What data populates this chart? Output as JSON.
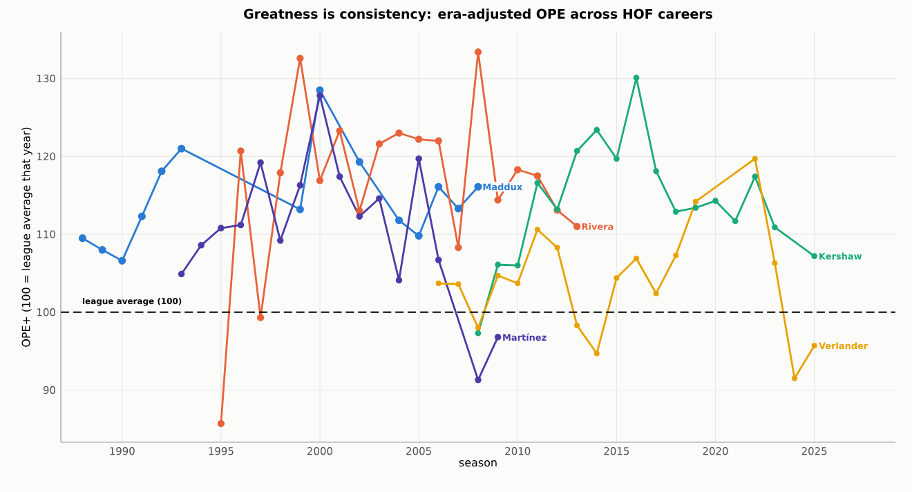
{
  "chart_data": {
    "type": "line",
    "title": "Greatness is consistency: era-adjusted OPE across HOF careers",
    "xlabel": "season",
    "ylabel": "OPE+  (100 = league average that year)",
    "xlim": [
      1986.9,
      2029.1
    ],
    "ylim": [
      83.3,
      136
    ],
    "xticks": [
      1990,
      1995,
      2000,
      2005,
      2010,
      2015,
      2020,
      2025
    ],
    "yticks": [
      90,
      100,
      110,
      120,
      130
    ],
    "grid": true,
    "legend": false,
    "marker": "circle",
    "line_style": "solid",
    "ref_lines": [
      {
        "axis": "y",
        "value": 100,
        "label": "league average (100)",
        "color": "#000000",
        "line_style": "dashed"
      }
    ],
    "series": [
      {
        "name": "Maddux",
        "color": "#2a7bd4",
        "x": [
          1988,
          1989,
          1990,
          1991,
          1992,
          1993,
          1999,
          2000,
          2002,
          2004,
          2005,
          2006,
          2007,
          2008
        ],
        "values": [
          109.5,
          108.0,
          106.6,
          112.3,
          118.1,
          121.0,
          113.2,
          128.5,
          119.3,
          111.8,
          109.8,
          116.1,
          113.3,
          116.1
        ]
      },
      {
        "name": "Rivera",
        "color": "#e8623a",
        "x": [
          1995,
          1996,
          1997,
          1998,
          1999,
          2000,
          2001,
          2002,
          2003,
          2004,
          2005,
          2006,
          2007,
          2008,
          2009,
          2010,
          2011,
          2012,
          2013
        ],
        "values": [
          85.7,
          120.7,
          99.3,
          117.9,
          132.6,
          116.9,
          123.3,
          113.0,
          121.6,
          123.0,
          122.2,
          122.0,
          108.3,
          133.4,
          114.4,
          118.3,
          117.5,
          113.1,
          111.0
        ]
      },
      {
        "name": "Martínez",
        "color": "#4b3aa8",
        "x": [
          1993,
          1994,
          1995,
          1996,
          1997,
          1998,
          1999,
          2000,
          2001,
          2002,
          2003,
          2004,
          2005,
          2006,
          2008,
          2009
        ],
        "values": [
          104.9,
          108.6,
          110.8,
          111.2,
          119.2,
          109.2,
          116.3,
          127.8,
          117.4,
          112.3,
          114.6,
          104.1,
          119.7,
          106.7,
          91.3,
          96.8
        ]
      },
      {
        "name": "Kershaw",
        "color": "#1aaa7a",
        "x": [
          2008,
          2009,
          2010,
          2011,
          2012,
          2013,
          2014,
          2015,
          2016,
          2017,
          2018,
          2019,
          2020,
          2021,
          2022,
          2023,
          2025
        ],
        "values": [
          97.3,
          106.1,
          106.0,
          116.6,
          113.2,
          120.7,
          123.4,
          119.7,
          130.1,
          118.1,
          112.9,
          113.4,
          114.3,
          111.7,
          117.4,
          110.9,
          107.2
        ]
      },
      {
        "name": "Verlander",
        "color": "#e8a200",
        "x": [
          2006,
          2007,
          2008,
          2009,
          2010,
          2011,
          2012,
          2013,
          2014,
          2015,
          2016,
          2017,
          2018,
          2019,
          2022,
          2023,
          2024,
          2025
        ],
        "values": [
          103.7,
          103.6,
          98.0,
          104.7,
          103.7,
          110.6,
          108.3,
          98.3,
          94.7,
          104.4,
          106.9,
          102.4,
          107.3,
          114.2,
          119.7,
          106.3,
          91.5,
          95.7
        ]
      }
    ]
  }
}
